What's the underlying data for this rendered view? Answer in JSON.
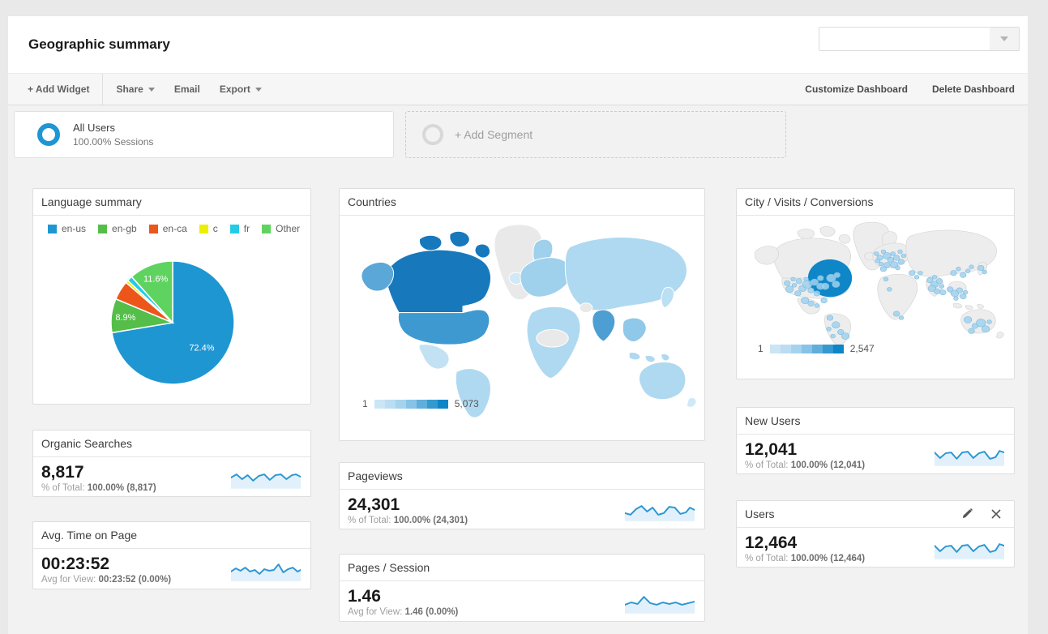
{
  "header": {
    "title": "Geographic summary",
    "date_range_value": ""
  },
  "toolbar": {
    "add_widget": "+ Add Widget",
    "share": "Share",
    "email": "Email",
    "export": "Export",
    "customize": "Customize Dashboard",
    "delete": "Delete Dashboard"
  },
  "segments": {
    "all_users_title": "All Users",
    "all_users_subtitle": "100.00% Sessions",
    "add_segment_label": "+ Add Segment"
  },
  "widgets": {
    "language_summary": {
      "title": "Language summary",
      "chart_data": {
        "type": "pie",
        "slices": [
          {
            "label": "en-us",
            "value": 72.4,
            "color": "#1E96D2",
            "display_label": "72.4%"
          },
          {
            "label": "en-gb",
            "value": 8.9,
            "color": "#54BE49",
            "display_label": "8.9%"
          },
          {
            "label": "en-ca",
            "value": 5.0,
            "color": "#ED561B",
            "display_label": ""
          },
          {
            "label": "c",
            "value": 0.7,
            "color": "#EDEF00",
            "display_label": ""
          },
          {
            "label": "fr",
            "value": 1.4,
            "color": "#24CBE5",
            "display_label": ""
          },
          {
            "label": "Other",
            "value": 11.6,
            "color": "#5FD35F",
            "display_label": "11.6%"
          }
        ]
      }
    },
    "countries": {
      "title": "Countries",
      "scale_min": "1",
      "scale_max": "5,073"
    },
    "city_visits_conversions": {
      "title": "City / Visits / Conversions",
      "scale_min": "1",
      "scale_max": "2,547"
    },
    "organic_searches": {
      "title": "Organic Searches",
      "value": "8,817",
      "caption_label": "% of Total:",
      "caption_value": "100.00% (8,817)"
    },
    "avg_time_on_page": {
      "title": "Avg. Time on Page",
      "value": "00:23:52",
      "caption_label": "Avg for View:",
      "caption_value": "00:23:52 (0.00%)"
    },
    "pageviews": {
      "title": "Pageviews",
      "value": "24,301",
      "caption_label": "% of Total:",
      "caption_value": "100.00% (24,301)"
    },
    "pages_per_session": {
      "title": "Pages / Session",
      "value": "1.46",
      "caption_label": "Avg for View:",
      "caption_value": "1.46 (0.00%)"
    },
    "new_users": {
      "title": "New Users",
      "value": "12,041",
      "caption_label": "% of Total:",
      "caption_value": "100.00% (12,041)"
    },
    "users": {
      "title": "Users",
      "value": "12,464",
      "caption_label": "% of Total:",
      "caption_value": "100.00% (12,464)"
    }
  },
  "colors": {
    "accent_blue": "#1E96D3",
    "spark_line": "#2B97D3",
    "spark_fill": "#E1F0FA",
    "map_scale": [
      "#CBE5F5",
      "#BBDDF2",
      "#A5D3EE",
      "#86C3E6",
      "#5FAEDB",
      "#3399CF",
      "#0D85C6"
    ],
    "map_dark": "#1778BC",
    "map_medium": "#3E99D0",
    "map_light": "#AFD9F1",
    "map_nodata": "#E9E9E9",
    "city_land": "#EDEDED",
    "bubble": "#9ED2EE",
    "bubble_big": "#0E86C8"
  }
}
